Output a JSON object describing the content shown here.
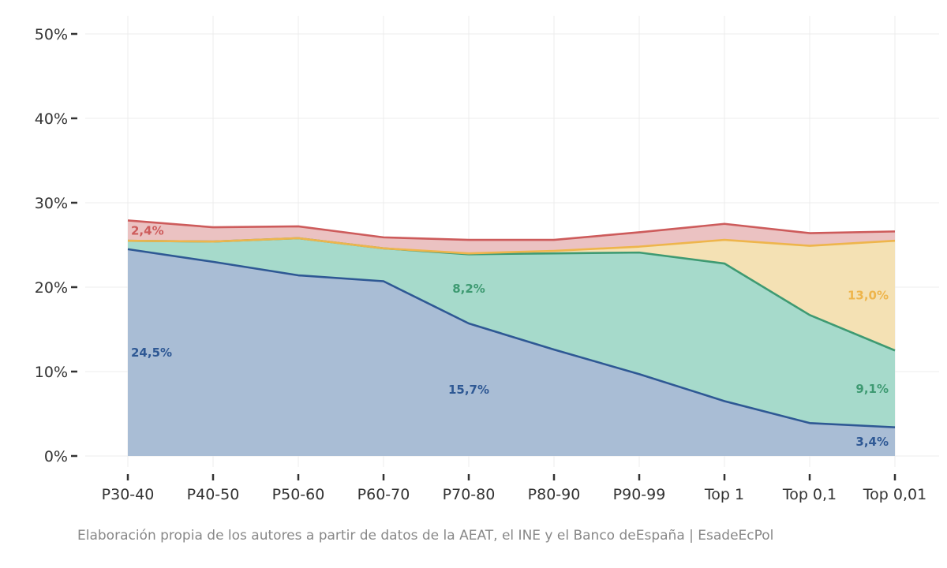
{
  "chart_data": {
    "type": "area",
    "stacked": true,
    "categories": [
      "P30-40",
      "P40-50",
      "P50-60",
      "P60-70",
      "P70-80",
      "P80-90",
      "P90-99",
      "Top 1",
      "Top 0,1",
      "Top 0,01"
    ],
    "series": [
      {
        "key": "blue",
        "color": "#2e5894",
        "fill": "#a9bdd5",
        "values": [
          24.5,
          23.0,
          21.4,
          20.7,
          15.7,
          12.6,
          9.7,
          6.5,
          3.9,
          3.4
        ]
      },
      {
        "key": "green",
        "color": "#3e9a72",
        "fill": "#a6dacb",
        "values": [
          1.0,
          2.4,
          4.4,
          3.9,
          8.2,
          11.4,
          14.4,
          16.3,
          12.8,
          9.1
        ]
      },
      {
        "key": "yellow",
        "color": "#eeb54c",
        "fill": "#f4e1b4",
        "values": [
          0.0,
          0.0,
          0.0,
          0.0,
          0.1,
          0.3,
          0.7,
          2.8,
          8.2,
          13.0
        ]
      },
      {
        "key": "red",
        "color": "#cd5b5b",
        "fill": "#ebc2c2",
        "values": [
          2.4,
          1.7,
          1.4,
          1.3,
          1.6,
          1.3,
          1.7,
          1.9,
          1.5,
          1.1
        ]
      }
    ],
    "y_ticks": [
      "0%",
      "10%",
      "20%",
      "30%",
      "40%",
      "50%"
    ],
    "ylim": [
      0,
      50
    ],
    "grid": true,
    "legend": "none",
    "annotations": [
      {
        "text": "2,4%",
        "series": "red",
        "category_index": 0
      },
      {
        "text": "24,5%",
        "series": "blue",
        "category_index": 0
      },
      {
        "text": "8,2%",
        "series": "green",
        "category_index": 4
      },
      {
        "text": "15,7%",
        "series": "blue",
        "category_index": 4
      },
      {
        "text": "13,0%",
        "series": "yellow",
        "category_index": 9
      },
      {
        "text": "9,1%",
        "series": "green",
        "category_index": 9
      },
      {
        "text": "3,4%",
        "series": "blue",
        "category_index": 9
      }
    ],
    "caption": "Elaboración propia de los autores a partir de datos de la AEAT, el INE y el Banco deEspaña | EsadeEcPol"
  }
}
